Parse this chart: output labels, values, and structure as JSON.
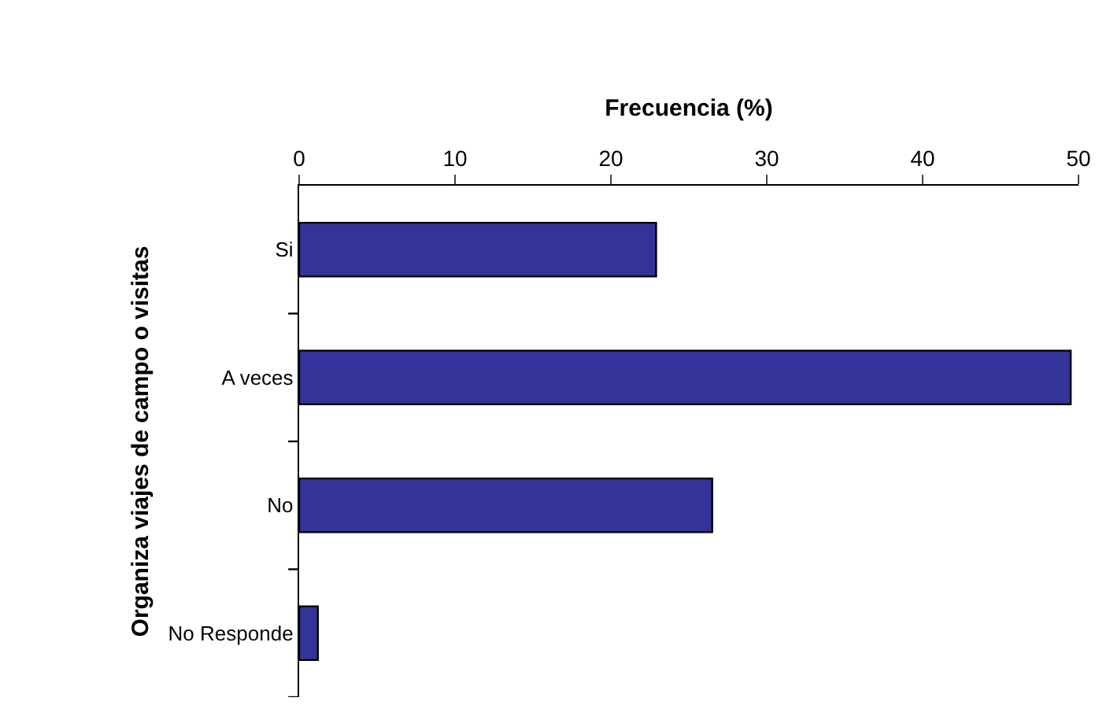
{
  "chart_data": {
    "type": "bar",
    "orientation": "horizontal",
    "xlabel": "Frecuencia (%)",
    "ylabel": "Organiza viajes de campo o visitas",
    "categories": [
      "Si",
      "A veces",
      "No",
      "No Responde"
    ],
    "values": [
      22.9,
      49.5,
      26.5,
      1.2
    ],
    "color": "#333399",
    "xlim": [
      0,
      50
    ],
    "xticks": [
      0,
      10,
      20,
      30,
      40,
      50
    ]
  }
}
